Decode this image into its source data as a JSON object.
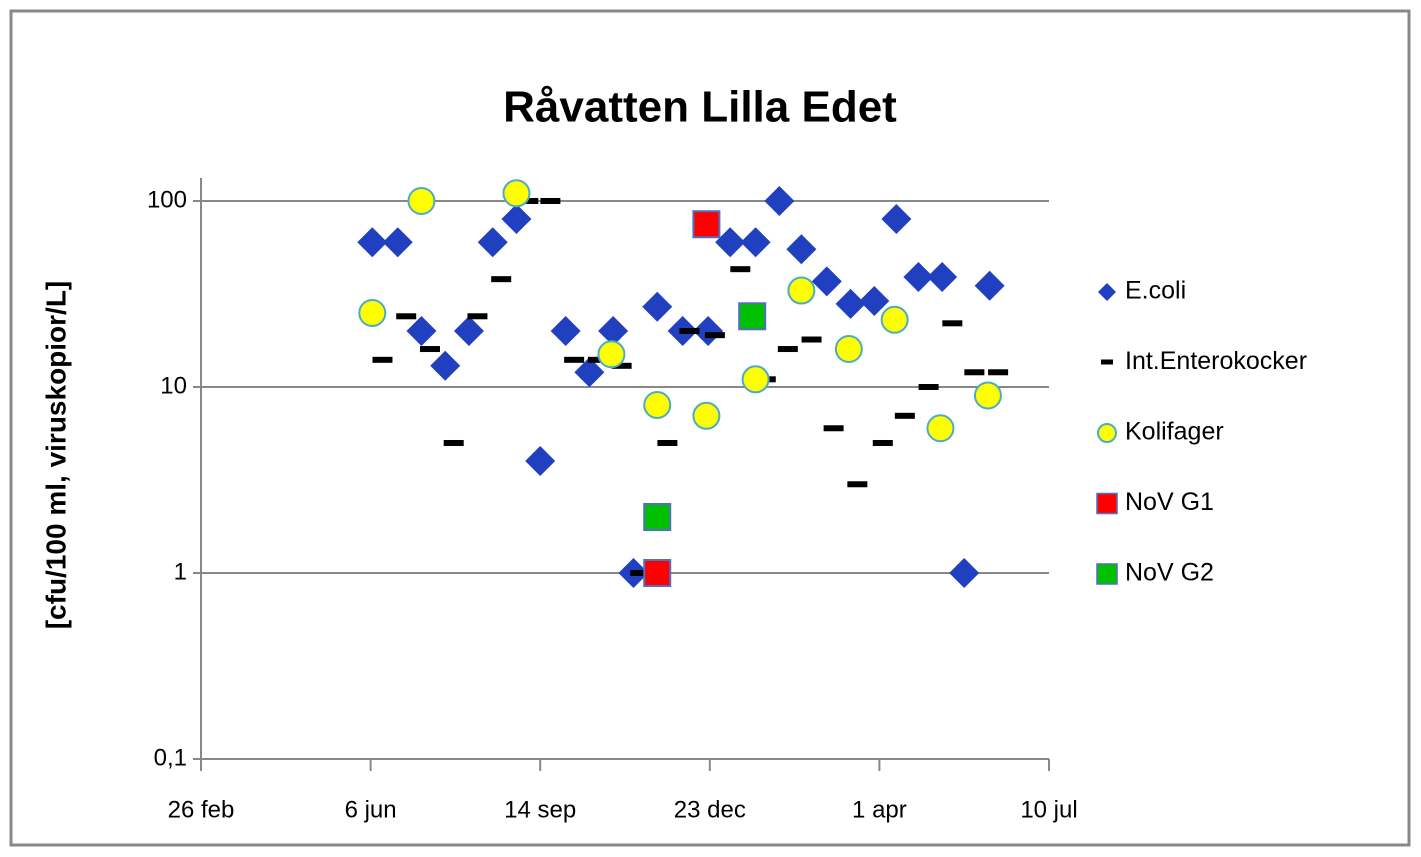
{
  "chart_data": {
    "type": "scatter",
    "title": "Råvatten Lilla Edet",
    "y_label": "[cfu/100 ml, viruskopior/L]",
    "log_y": true,
    "grid": true,
    "legend": "right",
    "xlim": [
      0,
      500
    ],
    "xticks": [
      {
        "value": 0,
        "label": "26 feb"
      },
      {
        "value": 100,
        "label": "6 jun"
      },
      {
        "value": 200,
        "label": "14 sep"
      },
      {
        "value": 300,
        "label": "23 dec"
      },
      {
        "value": 400,
        "label": "1 apr"
      },
      {
        "value": 500,
        "label": "10 jul"
      }
    ],
    "ylim": [
      0.1,
      100
    ],
    "yticks": [
      {
        "value": 0.1,
        "label": "0,1"
      },
      1,
      10,
      100
    ],
    "series": [
      {
        "name": "E.coli",
        "color": "#2040c0",
        "marker": "diamond",
        "x": [
          101,
          116,
          130,
          144,
          158,
          172,
          186,
          200,
          215,
          229,
          243,
          255,
          269,
          284,
          299,
          312,
          327,
          341,
          354,
          369,
          383,
          397,
          410,
          423,
          437,
          450,
          465
        ],
        "values": [
          60,
          60,
          20,
          13,
          20,
          60,
          80,
          4,
          20,
          12,
          20,
          1,
          27,
          20,
          20,
          60,
          60,
          100,
          55,
          37,
          28,
          29,
          80,
          39,
          39,
          1,
          35
        ]
      },
      {
        "name": "Int.Enterokocker",
        "color": "#000000",
        "marker": "dash",
        "x": [
          107,
          121,
          135,
          149,
          163,
          177,
          193,
          206,
          220,
          234,
          248,
          259,
          275,
          288,
          303,
          318,
          333,
          346,
          360,
          373,
          387,
          402,
          415,
          429,
          443,
          456,
          470
        ],
        "values": [
          14,
          24,
          16,
          5,
          24,
          38,
          100,
          100,
          14,
          14,
          13,
          1,
          5,
          20,
          19,
          43,
          11,
          16,
          18,
          6,
          3,
          5,
          7,
          10,
          22,
          12,
          12
        ]
      },
      {
        "name": "Kolifager",
        "color": "#ffff00",
        "marker": "circle",
        "x": [
          101,
          130,
          186,
          242,
          269,
          298,
          327,
          354,
          382,
          409,
          436,
          464
        ],
        "values": [
          25,
          100,
          110,
          15,
          8,
          7,
          11,
          33,
          16,
          23,
          6,
          9
        ]
      },
      {
        "name": "NoV G1",
        "color": "#ff0000",
        "marker": "square",
        "x": [
          298,
          269
        ],
        "values": [
          75,
          1
        ]
      },
      {
        "name": "NoV G2",
        "color": "#00c000",
        "marker": "square",
        "x": [
          269,
          325
        ],
        "values": [
          2,
          24
        ]
      }
    ]
  }
}
